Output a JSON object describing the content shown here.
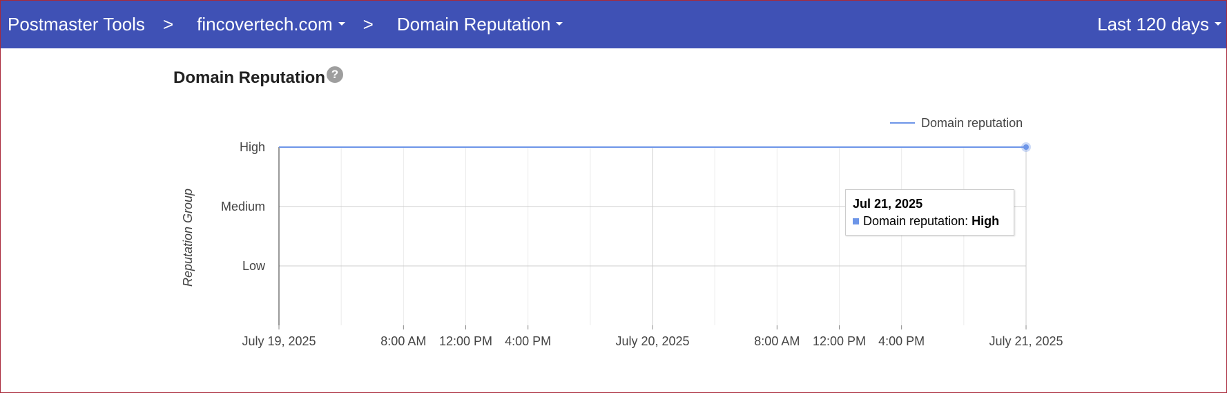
{
  "topbar": {
    "breadcrumb": [
      "Postmaster Tools",
      "fincovertech.com",
      "Domain Reputation"
    ],
    "separator": ">",
    "range_label": "Last 120 days"
  },
  "page_title": "Domain Reputation",
  "help_glyph": "?",
  "tooltip": {
    "date": "Jul 21, 2025",
    "label": "Domain reputation:",
    "value": "High"
  },
  "colors": {
    "topbar": "#3f51b5",
    "series": "#6d95e8"
  },
  "chart_data": {
    "type": "line",
    "title": "",
    "ylabel": "Reputation Group",
    "xlabel": "",
    "y_categories": [
      "Low",
      "Medium",
      "High"
    ],
    "x_ticks": [
      "July 19, 2025",
      "8:00 AM",
      "12:00 PM",
      "4:00 PM",
      "July 20, 2025",
      "8:00 AM",
      "12:00 PM",
      "4:00 PM",
      "July 21, 2025"
    ],
    "series": [
      {
        "name": "Domain reputation",
        "color": "#6d95e8",
        "points": [
          {
            "x": "July 19, 2025",
            "y": "High"
          },
          {
            "x": "July 21, 2025",
            "y": "High"
          }
        ]
      }
    ],
    "highlighted_point": {
      "x": "July 21, 2025",
      "y": "High"
    },
    "legend_position": "top-right",
    "grid": true
  }
}
